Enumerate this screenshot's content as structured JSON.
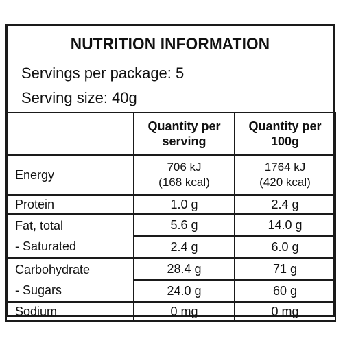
{
  "title": "NUTRITION INFORMATION",
  "servings_per_package": "Servings per package: 5",
  "serving_size": "Serving size: 40g",
  "columns": {
    "per_serving_line1": "Quantity per",
    "per_serving_line2": "serving",
    "per_100g_line1": "Quantity per",
    "per_100g_line2": "100g"
  },
  "rows": {
    "energy": {
      "label": "Energy",
      "per_serving_kj": "706 kJ",
      "per_serving_kcal": "(168 kcal)",
      "per_100g_kj": "1764 kJ",
      "per_100g_kcal": "(420 kcal)"
    },
    "protein": {
      "label": "Protein",
      "per_serving": "1.0 g",
      "per_100g": "2.4 g"
    },
    "fat_total": {
      "label": "Fat, total",
      "per_serving": "5.6 g",
      "per_100g": "14.0 g"
    },
    "saturated": {
      "label": "- Saturated",
      "per_serving": "2.4 g",
      "per_100g": "6.0 g"
    },
    "carbohydrate": {
      "label": "Carbohydrate",
      "per_serving": "28.4 g",
      "per_100g": "71 g"
    },
    "sugars": {
      "label": "- Sugars",
      "per_serving": "24.0 g",
      "per_100g": "60 g"
    },
    "sodium": {
      "label": "Sodium",
      "per_serving": "0 mg",
      "per_100g": "0 mg"
    }
  }
}
